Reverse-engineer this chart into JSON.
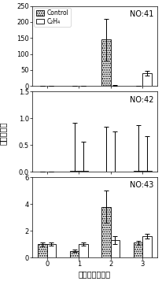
{
  "subplot1": {
    "label": "NO:41",
    "ylim": [
      0,
      250
    ],
    "yticks": [
      0,
      50,
      100,
      150,
      200,
      250
    ],
    "control_vals": [
      0.3,
      0.5,
      145,
      0.5
    ],
    "c2h4_vals": [
      0.3,
      0.8,
      1.5,
      40
    ],
    "control_err": [
      0.1,
      0.2,
      65,
      0.2
    ],
    "c2h4_err": [
      0.1,
      0.3,
      0.5,
      8
    ]
  },
  "subplot2": {
    "label": "NO:42",
    "ylim": [
      0.0,
      1.5
    ],
    "yticks": [
      0.0,
      0.5,
      1.0,
      1.5
    ],
    "control_vals": [
      0.0,
      0.02,
      0.0,
      0.02
    ],
    "c2h4_vals": [
      0.0,
      0.02,
      0.0,
      0.02
    ],
    "control_err": [
      0.0,
      0.9,
      0.85,
      0.85
    ],
    "c2h4_err": [
      0.0,
      0.55,
      0.75,
      0.65
    ]
  },
  "subplot3": {
    "label": "NO:43",
    "ylim": [
      0,
      6
    ],
    "yticks": [
      0,
      2,
      4,
      6
    ],
    "control_vals": [
      1.0,
      0.5,
      3.8,
      1.1
    ],
    "c2h4_vals": [
      1.0,
      1.0,
      1.3,
      1.6
    ],
    "control_err": [
      0.15,
      0.1,
      1.2,
      0.15
    ],
    "c2h4_err": [
      0.1,
      0.1,
      0.3,
      0.15
    ]
  },
  "xticks": [
    0,
    1,
    2,
    3
  ],
  "xlabel": "储藏时间（天）",
  "ylabel": "相对表达量",
  "legend_control": "Control",
  "legend_c2h4": "C₂H₄",
  "bar_width": 0.28
}
